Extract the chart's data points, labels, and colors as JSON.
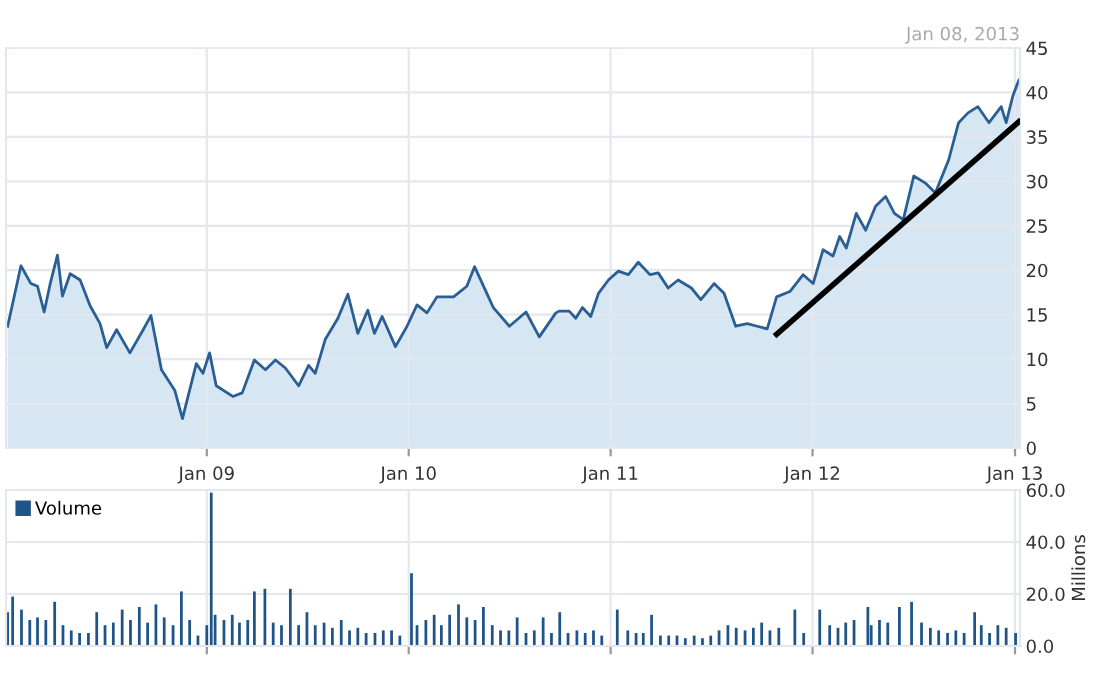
{
  "chart_data": [
    {
      "type": "area",
      "annotations": [
        "Jan 08, 2013"
      ],
      "xlim": [
        "2008-01-04",
        "2013-01-10"
      ],
      "ylim": [
        0,
        45
      ],
      "yticks": [
        0,
        5,
        10,
        15,
        20,
        25,
        30,
        35,
        40,
        45
      ],
      "xticks": [
        {
          "value": "2009-01-01",
          "label": "Jan 09"
        },
        {
          "value": "2010-01-01",
          "label": "Jan 10"
        },
        {
          "value": "2011-01-01",
          "label": "Jan 11"
        },
        {
          "value": "2012-01-01",
          "label": "Jan 12"
        },
        {
          "value": "2013-01-01",
          "label": "Jan 13"
        }
      ],
      "grid": true,
      "legend": false,
      "series": [
        {
          "type": "area",
          "color": "#2a5f96",
          "x": [
            "2008-01-07",
            "2008-01-31",
            "2008-02-18",
            "2008-03-01",
            "2008-03-13",
            "2008-03-24",
            "2008-04-06",
            "2008-04-15",
            "2008-04-29",
            "2008-05-17",
            "2008-06-04",
            "2008-06-22",
            "2008-07-04",
            "2008-07-22",
            "2008-08-15",
            "2008-09-08",
            "2008-09-22",
            "2008-10-11",
            "2008-11-04",
            "2008-11-18",
            "2008-12-13",
            "2008-12-25",
            "2009-01-06",
            "2009-01-18",
            "2009-02-17",
            "2009-03-06",
            "2009-03-28",
            "2009-04-17",
            "2009-05-05",
            "2009-05-23",
            "2009-06-16",
            "2009-07-04",
            "2009-07-16",
            "2009-08-03",
            "2009-08-26",
            "2009-09-13",
            "2009-10-01",
            "2009-10-19",
            "2009-10-31",
            "2009-11-14",
            "2009-12-08",
            "2009-12-29",
            "2010-01-16",
            "2010-02-03",
            "2010-02-21",
            "2010-03-23",
            "2010-04-16",
            "2010-04-30",
            "2010-06-03",
            "2010-07-02",
            "2010-08-01",
            "2010-08-25",
            "2010-09-24",
            "2010-09-30",
            "2010-10-18",
            "2010-10-30",
            "2010-11-11",
            "2010-11-26",
            "2010-12-10",
            "2010-12-28",
            "2011-01-15",
            "2011-02-02",
            "2011-02-20",
            "2011-03-13",
            "2011-03-28",
            "2011-04-15",
            "2011-05-03",
            "2011-05-27",
            "2011-06-13",
            "2011-07-07",
            "2011-07-25",
            "2011-08-15",
            "2011-09-05",
            "2011-09-23",
            "2011-10-11",
            "2011-10-28",
            "2011-11-21",
            "2011-12-15",
            "2012-01-02",
            "2012-01-20",
            "2012-02-07",
            "2012-02-19",
            "2012-03-02",
            "2012-03-20",
            "2012-04-06",
            "2012-04-24",
            "2012-05-12",
            "2012-05-28",
            "2012-06-13",
            "2012-07-02",
            "2012-07-23",
            "2012-08-10",
            "2012-09-03",
            "2012-09-21",
            "2012-10-08",
            "2012-10-26",
            "2012-11-15",
            "2012-12-07",
            "2012-12-16",
            "2012-12-28",
            "2013-01-08"
          ],
          "values": [
            13.7,
            20.5,
            18.5,
            18.2,
            15.3,
            18.5,
            21.7,
            17.1,
            19.6,
            18.9,
            16,
            14,
            11.3,
            13.3,
            10.7,
            13.3,
            14.9,
            8.8,
            6.5,
            3.3,
            9.5,
            8.4,
            10.7,
            7,
            5.8,
            6.2,
            9.9,
            8.8,
            9.9,
            9,
            7,
            9.3,
            8.4,
            12.2,
            14.6,
            17.3,
            12.9,
            15.5,
            12.9,
            14.8,
            11.4,
            13.7,
            16.1,
            15.2,
            17,
            17,
            18.2,
            20.4,
            15.8,
            13.7,
            15.3,
            12.5,
            15.2,
            15.4,
            15.4,
            14.6,
            15.8,
            14.8,
            17.4,
            18.9,
            19.9,
            19.5,
            20.9,
            19.5,
            19.7,
            18,
            18.9,
            18,
            16.7,
            18.5,
            17.4,
            13.7,
            14,
            13.7,
            13.4,
            17,
            17.6,
            19.5,
            18.5,
            22.3,
            21.6,
            23.8,
            22.5,
            26.4,
            24.5,
            27.2,
            28.3,
            26.4,
            25.7,
            30.6,
            29.8,
            28.7,
            32.4,
            36.6,
            37.7,
            38.4,
            36.6,
            38.4,
            36.6,
            39.6,
            41.4
          ]
        },
        {
          "type": "line",
          "color": "#000000",
          "x": [
            "2011-10-28",
            "2013-01-08"
          ],
          "values": [
            12.8,
            36.7
          ]
        }
      ]
    },
    {
      "type": "bar",
      "ylabel": "Millions",
      "ylim": [
        0,
        60
      ],
      "yticks": [
        {
          "value": 0,
          "label": "0.0"
        },
        {
          "value": 20,
          "label": "20.0"
        },
        {
          "value": 40,
          "label": "40.0"
        },
        {
          "value": 60,
          "label": "60.0"
        }
      ],
      "xlim": [
        "2008-01-04",
        "2013-01-10"
      ],
      "xticks": [
        {
          "value": "2009-01-01",
          "label": null
        },
        {
          "value": "2010-01-01",
          "label": null
        },
        {
          "value": "2011-01-01",
          "label": null
        },
        {
          "value": "2012-01-01",
          "label": null
        },
        {
          "value": "2013-01-01",
          "label": null
        }
      ],
      "tick_labels": "y",
      "grid": true,
      "legend": "top left",
      "series": [
        {
          "name": "Volume",
          "color": "#1f5488",
          "x": [
            "2008-01-07",
            "2008-01-16",
            "2008-02-01",
            "2008-02-16",
            "2008-03-01",
            "2008-03-16",
            "2008-04-01",
            "2008-04-16",
            "2008-05-01",
            "2008-05-16",
            "2008-06-01",
            "2008-06-16",
            "2008-07-01",
            "2008-07-16",
            "2008-08-01",
            "2008-08-16",
            "2008-09-01",
            "2008-09-16",
            "2008-10-01",
            "2008-10-16",
            "2008-11-01",
            "2008-11-16",
            "2008-12-01",
            "2008-12-16",
            "2009-01-01",
            "2009-01-09",
            "2009-01-16",
            "2009-02-01",
            "2009-02-16",
            "2009-03-01",
            "2009-03-16",
            "2009-03-28",
            "2009-04-16",
            "2009-05-01",
            "2009-05-16",
            "2009-06-01",
            "2009-06-16",
            "2009-07-01",
            "2009-07-16",
            "2009-08-01",
            "2009-08-16",
            "2009-09-01",
            "2009-09-16",
            "2009-10-01",
            "2009-10-16",
            "2009-11-01",
            "2009-11-16",
            "2009-12-01",
            "2009-12-16",
            "2010-01-06",
            "2010-01-16",
            "2010-02-01",
            "2010-02-16",
            "2010-03-01",
            "2010-03-16",
            "2010-04-01",
            "2010-04-16",
            "2010-05-01",
            "2010-05-16",
            "2010-06-01",
            "2010-06-16",
            "2010-07-01",
            "2010-07-16",
            "2010-08-01",
            "2010-08-16",
            "2010-09-01",
            "2010-09-16",
            "2010-10-01",
            "2010-10-16",
            "2010-11-01",
            "2010-11-16",
            "2010-12-01",
            "2010-12-16",
            "2011-01-13",
            "2011-02-01",
            "2011-02-16",
            "2011-03-01",
            "2011-03-16",
            "2011-04-01",
            "2011-04-16",
            "2011-05-01",
            "2011-05-16",
            "2011-06-01",
            "2011-06-16",
            "2011-07-01",
            "2011-07-16",
            "2011-08-01",
            "2011-08-16",
            "2011-09-01",
            "2011-09-16",
            "2011-10-01",
            "2011-10-16",
            "2011-11-01",
            "2011-11-30",
            "2011-12-16",
            "2012-01-14",
            "2012-02-01",
            "2012-02-16",
            "2012-03-01",
            "2012-03-16",
            "2012-04-10",
            "2012-04-16",
            "2012-05-01",
            "2012-05-16",
            "2012-06-06",
            "2012-06-28",
            "2012-07-16",
            "2012-08-01",
            "2012-08-16",
            "2012-09-01",
            "2012-09-16",
            "2012-10-01",
            "2012-10-20",
            "2012-11-01",
            "2012-11-16",
            "2012-12-01",
            "2012-12-16",
            "2013-01-02"
          ],
          "values": [
            13,
            19,
            14,
            10,
            11,
            10,
            17,
            8,
            6,
            5,
            5,
            13,
            8,
            9,
            14,
            10,
            15,
            9,
            16,
            11,
            8,
            21,
            10,
            4,
            8,
            59,
            12,
            10,
            12,
            9,
            10,
            21,
            22,
            9,
            8,
            22,
            8,
            13,
            8,
            9,
            7,
            10,
            6,
            7,
            5,
            5,
            6,
            6,
            4,
            28,
            8,
            10,
            12,
            8,
            12,
            16,
            11,
            10,
            15,
            8,
            6,
            6,
            11,
            5,
            6,
            11,
            5,
            13,
            5,
            6,
            5,
            6,
            4,
            14,
            6,
            5,
            5,
            12,
            4,
            4,
            4,
            3,
            4,
            3,
            4,
            6,
            8,
            7,
            6,
            7,
            9,
            6,
            7,
            14,
            5,
            14,
            8,
            7,
            9,
            10,
            15,
            8,
            10,
            9,
            15,
            17,
            9,
            7,
            6,
            5,
            6,
            5,
            13,
            8,
            5,
            8,
            7,
            5
          ]
        }
      ]
    }
  ]
}
